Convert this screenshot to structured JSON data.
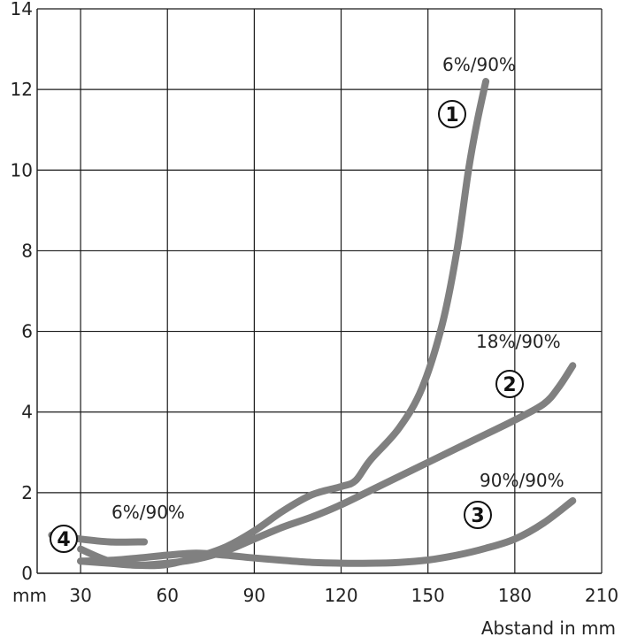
{
  "chart_data": {
    "type": "line",
    "xlabel": "Abstand in mm",
    "x_unit_label": "mm",
    "ylabel": "",
    "xlim": [
      15,
      210
    ],
    "ylim": [
      0,
      14
    ],
    "x_ticks": [
      30,
      60,
      90,
      120,
      150,
      180,
      210
    ],
    "y_ticks": [
      0,
      2,
      4,
      6,
      8,
      10,
      12,
      14
    ],
    "grid": true,
    "line_color": "#808080",
    "series": [
      {
        "name": "6%/90%",
        "marker": "①",
        "points": [
          [
            30,
            0.6
          ],
          [
            40,
            0.3
          ],
          [
            50,
            0.2
          ],
          [
            60,
            0.22
          ],
          [
            70,
            0.4
          ],
          [
            80,
            0.65
          ],
          [
            90,
            1.05
          ],
          [
            100,
            1.55
          ],
          [
            110,
            1.95
          ],
          [
            120,
            2.15
          ],
          [
            125,
            2.3
          ],
          [
            130,
            2.8
          ],
          [
            140,
            3.6
          ],
          [
            148,
            4.6
          ],
          [
            155,
            6.2
          ],
          [
            160,
            8.0
          ],
          [
            164,
            10.0
          ],
          [
            167,
            11.2
          ],
          [
            170,
            12.2
          ]
        ]
      },
      {
        "name": "18%/90%",
        "marker": "②",
        "points": [
          [
            30,
            0.3
          ],
          [
            40,
            0.25
          ],
          [
            50,
            0.2
          ],
          [
            60,
            0.25
          ],
          [
            70,
            0.35
          ],
          [
            80,
            0.55
          ],
          [
            90,
            0.85
          ],
          [
            100,
            1.15
          ],
          [
            110,
            1.4
          ],
          [
            120,
            1.7
          ],
          [
            130,
            2.05
          ],
          [
            140,
            2.4
          ],
          [
            150,
            2.75
          ],
          [
            160,
            3.1
          ],
          [
            170,
            3.45
          ],
          [
            180,
            3.8
          ],
          [
            190,
            4.2
          ],
          [
            195,
            4.6
          ],
          [
            200,
            5.15
          ]
        ]
      },
      {
        "name": "90%/90%",
        "marker": "③",
        "points": [
          [
            30,
            0.3
          ],
          [
            40,
            0.32
          ],
          [
            50,
            0.38
          ],
          [
            60,
            0.45
          ],
          [
            70,
            0.5
          ],
          [
            80,
            0.45
          ],
          [
            90,
            0.38
          ],
          [
            100,
            0.32
          ],
          [
            110,
            0.27
          ],
          [
            120,
            0.25
          ],
          [
            130,
            0.25
          ],
          [
            140,
            0.27
          ],
          [
            150,
            0.33
          ],
          [
            160,
            0.45
          ],
          [
            170,
            0.62
          ],
          [
            180,
            0.85
          ],
          [
            190,
            1.25
          ],
          [
            200,
            1.8
          ]
        ]
      },
      {
        "name": "6%/90%",
        "marker": "④",
        "points": [
          [
            20,
            0.95
          ],
          [
            30,
            0.85
          ],
          [
            40,
            0.78
          ],
          [
            50,
            0.78
          ],
          [
            52,
            0.78
          ]
        ]
      }
    ]
  }
}
